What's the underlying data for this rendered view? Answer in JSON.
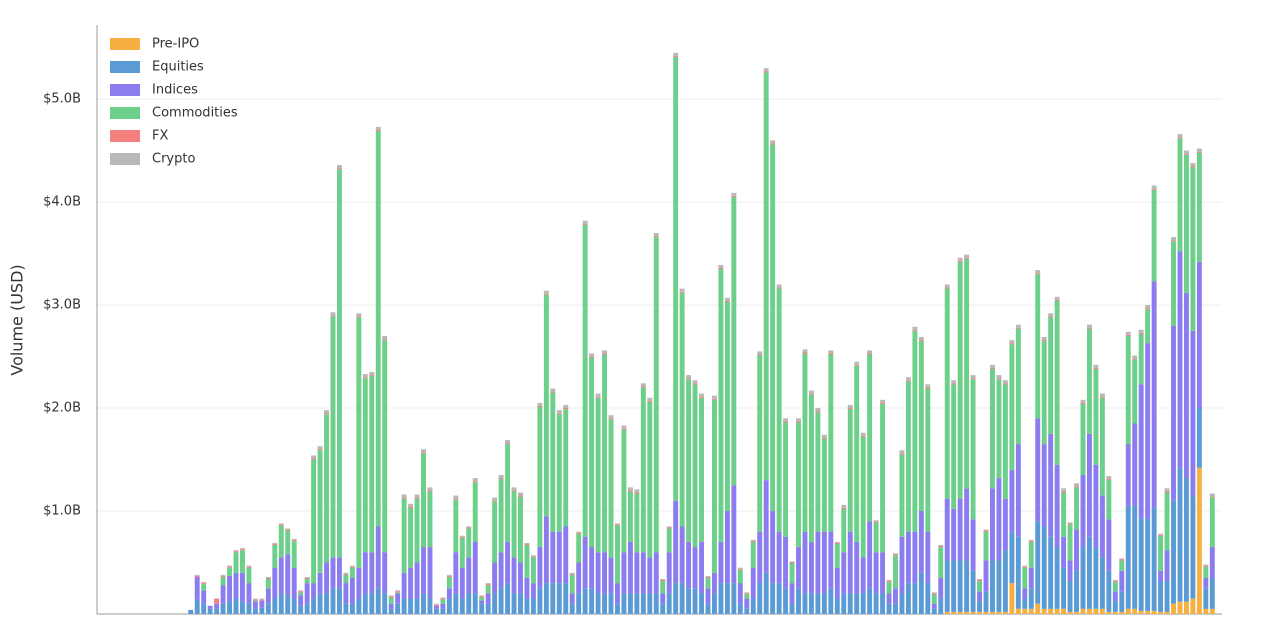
{
  "chart_data": {
    "type": "stacked_bar",
    "y_label": "Volume (USD)",
    "legend": "upper left",
    "grid": true,
    "ylim": [
      0,
      5.72
    ],
    "yticks": [
      {
        "value": 1,
        "label": "$1.0B"
      },
      {
        "value": 2,
        "label": "$2.0B"
      },
      {
        "value": 3,
        "label": "$3.0B"
      },
      {
        "value": 4,
        "label": "$4.0B"
      },
      {
        "value": 5,
        "label": "$5.0B"
      }
    ],
    "categories": [
      null,
      null,
      null,
      null,
      null,
      null,
      null,
      null,
      null,
      null,
      null,
      null,
      null,
      null,
      null,
      null,
      null,
      null,
      null,
      null,
      null,
      null,
      null,
      null,
      null,
      null,
      null,
      null,
      null,
      null,
      null,
      null,
      null,
      null,
      null,
      null,
      null,
      null,
      null,
      null,
      null,
      null,
      null,
      null,
      null,
      null,
      null,
      null,
      null,
      null,
      null,
      null,
      null,
      null,
      null,
      null,
      null,
      null,
      null,
      null,
      null,
      null,
      null,
      null,
      null,
      null,
      null,
      null,
      null,
      null,
      null,
      null,
      null,
      null,
      null,
      null,
      null,
      null,
      null,
      null,
      null,
      null,
      null,
      null,
      null,
      null,
      null,
      null,
      null,
      null,
      null,
      null,
      null,
      null,
      null,
      null,
      null,
      null,
      null,
      null,
      null,
      null,
      null,
      null,
      null,
      null,
      null,
      null,
      null,
      null,
      null,
      null,
      null,
      null,
      null,
      null,
      null,
      null,
      null,
      null,
      null,
      null,
      null,
      null,
      null,
      null,
      null,
      null,
      null,
      null,
      null,
      null,
      null,
      null,
      null,
      null,
      null,
      null,
      null,
      null,
      null,
      null,
      null,
      null,
      null,
      null,
      null,
      null,
      null,
      null,
      null,
      null,
      null,
      null,
      null,
      null,
      null,
      null,
      null,
      null,
      null,
      null,
      null,
      null,
      null,
      null,
      null,
      null,
      null,
      null,
      null,
      null,
      null,
      null
    ],
    "series": [
      {
        "name": "Pre-IPO",
        "color": "#f5b041",
        "values": [
          0,
          0,
          0,
          0,
          0,
          0,
          0,
          0,
          0,
          0,
          0,
          0,
          0,
          0,
          0,
          0,
          0,
          0,
          0,
          0,
          0,
          0,
          0,
          0,
          0,
          0,
          0,
          0,
          0,
          0,
          0,
          0,
          0,
          0,
          0,
          0,
          0,
          0,
          0,
          0,
          0,
          0,
          0,
          0,
          0,
          0,
          0,
          0,
          0,
          0,
          0,
          0,
          0,
          0,
          0,
          0,
          0,
          0,
          0,
          0,
          0,
          0,
          0,
          0,
          0,
          0,
          0,
          0,
          0,
          0,
          0,
          0,
          0,
          0,
          0,
          0,
          0,
          0,
          0,
          0,
          0,
          0,
          0,
          0,
          0,
          0,
          0,
          0,
          0,
          0,
          0,
          0,
          0,
          0,
          0,
          0,
          0,
          0,
          0,
          0,
          0,
          0,
          0,
          0,
          0,
          0,
          0,
          0,
          0,
          0,
          0,
          0,
          0,
          0,
          0,
          0,
          0,
          0,
          0,
          0,
          0,
          0,
          0,
          0,
          0,
          0,
          0,
          0,
          0,
          0,
          0,
          0.02,
          0.02,
          0.02,
          0.02,
          0.02,
          0.02,
          0.02,
          0.02,
          0.02,
          0.02,
          0.3,
          0.05,
          0.05,
          0.05,
          0.1,
          0.05,
          0.05,
          0.05,
          0.05,
          0.02,
          0.02,
          0.05,
          0.05,
          0.05,
          0.05,
          0.02,
          0.02,
          0.02,
          0.05,
          0.05,
          0.03,
          0.03,
          0.03,
          0.02,
          0.02,
          0.1,
          0.12,
          0.12,
          0.15,
          1.42,
          0.05,
          0.05,
          0
        ]
      },
      {
        "name": "Equities",
        "color": "#5b9bd5",
        "values": [
          0,
          0,
          0,
          0,
          0,
          0,
          0,
          0,
          0,
          0,
          0,
          0,
          0,
          0,
          0.04,
          0.14,
          0.1,
          0.05,
          0.05,
          0.1,
          0.12,
          0.15,
          0.12,
          0.1,
          0.05,
          0.06,
          0.1,
          0.15,
          0.2,
          0.18,
          0.15,
          0.08,
          0.1,
          0.15,
          0.2,
          0.2,
          0.25,
          0.25,
          0.1,
          0.1,
          0.15,
          0.2,
          0.2,
          0.25,
          0.2,
          0.05,
          0.1,
          0.15,
          0.15,
          0.15,
          0.2,
          0.15,
          0.05,
          0.05,
          0.15,
          0.2,
          0.15,
          0.2,
          0.2,
          0.1,
          0.1,
          0.2,
          0.25,
          0.3,
          0.2,
          0.2,
          0.15,
          0.15,
          0.25,
          0.3,
          0.3,
          0.3,
          0.3,
          0.1,
          0.2,
          0.25,
          0.25,
          0.2,
          0.2,
          0.2,
          0.1,
          0.2,
          0.2,
          0.2,
          0.2,
          0.2,
          0.2,
          0.1,
          0.2,
          0.3,
          0.3,
          0.25,
          0.25,
          0.2,
          0.1,
          0.2,
          0.3,
          0.3,
          0.3,
          0.1,
          0.05,
          0.15,
          0.3,
          0.4,
          0.3,
          0.3,
          0.25,
          0.1,
          0.25,
          0.2,
          0.2,
          0.2,
          0.2,
          0.25,
          0.15,
          0.2,
          0.2,
          0.2,
          0.2,
          0.25,
          0.2,
          0.2,
          0.1,
          0.1,
          0.2,
          0.3,
          0.3,
          0.4,
          0.3,
          0.05,
          0.15,
          0.5,
          0.5,
          0.5,
          0.5,
          0.4,
          0.1,
          0.2,
          0.5,
          0.5,
          0.6,
          0.5,
          0.7,
          0.1,
          0.2,
          0.8,
          0.8,
          0.7,
          0.6,
          0.4,
          0.3,
          0.4,
          0.6,
          0.7,
          0.6,
          0.5,
          0.4,
          0.1,
          0.2,
          1.0,
          1.0,
          0.9,
          0.9,
          1.0,
          0.3,
          0.3,
          1.0,
          1.3,
          1.2,
          1.0,
          0.58,
          0.2,
          0.3,
          0
        ]
      },
      {
        "name": "Indices",
        "color": "#8b7cf0",
        "values": [
          0,
          0,
          0,
          0,
          0,
          0,
          0,
          0,
          0,
          0,
          0,
          0,
          0,
          0,
          0,
          0.22,
          0.13,
          0.03,
          0.05,
          0.18,
          0.25,
          0.25,
          0.28,
          0.2,
          0.07,
          0.07,
          0.15,
          0.3,
          0.35,
          0.4,
          0.3,
          0.1,
          0.2,
          0.15,
          0.2,
          0.3,
          0.3,
          0.3,
          0.2,
          0.25,
          0.3,
          0.4,
          0.4,
          0.6,
          0.4,
          0.05,
          0.1,
          0.25,
          0.3,
          0.35,
          0.45,
          0.5,
          0.03,
          0.05,
          0.1,
          0.4,
          0.3,
          0.35,
          0.5,
          0.03,
          0.1,
          0.3,
          0.35,
          0.4,
          0.35,
          0.3,
          0.2,
          0.15,
          0.4,
          0.65,
          0.5,
          0.5,
          0.55,
          0.1,
          0.3,
          0.5,
          0.4,
          0.4,
          0.4,
          0.35,
          0.2,
          0.4,
          0.5,
          0.4,
          0.4,
          0.35,
          0.4,
          0.1,
          0.4,
          0.8,
          0.55,
          0.45,
          0.4,
          0.5,
          0.15,
          0.2,
          0.4,
          0.7,
          0.95,
          0.2,
          0.1,
          0.3,
          0.5,
          0.9,
          0.7,
          0.5,
          0.5,
          0.2,
          0.4,
          0.6,
          0.5,
          0.6,
          0.6,
          0.55,
          0.3,
          0.4,
          0.6,
          0.5,
          0.35,
          0.65,
          0.4,
          0.4,
          0.1,
          0.15,
          0.55,
          0.5,
          0.5,
          0.6,
          0.5,
          0.05,
          0.2,
          0.6,
          0.5,
          0.6,
          0.7,
          0.5,
          0.1,
          0.3,
          0.7,
          0.8,
          0.5,
          0.6,
          0.9,
          0.1,
          0.2,
          1.0,
          0.8,
          1.0,
          0.8,
          0.3,
          0.2,
          0.4,
          0.7,
          1.0,
          0.8,
          0.6,
          0.5,
          0.1,
          0.2,
          0.6,
          0.8,
          1.3,
          1.7,
          2.2,
          0.1,
          0.3,
          1.7,
          2.1,
          1.8,
          1.6,
          1.42,
          0.1,
          0.3,
          0
        ]
      },
      {
        "name": "Commodities",
        "color": "#6ccf8a",
        "values": [
          0,
          0,
          0,
          0,
          0,
          0,
          0,
          0,
          0,
          0,
          0,
          0,
          0,
          0,
          0,
          0,
          0.06,
          0,
          0,
          0.08,
          0.08,
          0.2,
          0.22,
          0.15,
          0.01,
          0,
          0.09,
          0.22,
          0.31,
          0.23,
          0.26,
          0.03,
          0.04,
          1.2,
          1.19,
          1.44,
          2.34,
          3.77,
          0.08,
          0.1,
          2.43,
          1.69,
          1.71,
          3.84,
          2.06,
          0.06,
          0.01,
          0.72,
          0.58,
          0.62,
          0.91,
          0.54,
          0,
          0.04,
          0.11,
          0.51,
          0.29,
          0.28,
          0.58,
          0.03,
          0.08,
          0.59,
          0.71,
          0.95,
          0.64,
          0.64,
          0.32,
          0.25,
          1.36,
          2.15,
          1.35,
          1.14,
          1.14,
          0.18,
          0.28,
          3.03,
          1.84,
          1.5,
          1.92,
          1.34,
          0.56,
          1.19,
          0.49,
          0.57,
          1.6,
          1.51,
          3.06,
          0.12,
          0.23,
          4.31,
          2.27,
          1.58,
          1.58,
          1.4,
          0.1,
          1.68,
          2.65,
          2.03,
          2.8,
          0.13,
          0.04,
          0.25,
          1.71,
          3.96,
          3.56,
          2.36,
          1.11,
          0.19,
          1.21,
          1.73,
          1.43,
          1.16,
          0.9,
          1.72,
          0.23,
          0.42,
          1.19,
          1.71,
          1.17,
          1.62,
          0.29,
          1.44,
          0.11,
          0.32,
          0.8,
          1.46,
          1.95,
          1.65,
          1.39,
          0.09,
          0.3,
          2.04,
          1.21,
          2.3,
          2.23,
          1.36,
          0.1,
          0.28,
          1.16,
          0.96,
          1.11,
          1.22,
          1.12,
          0.2,
          0.25,
          1.4,
          1.0,
          1.13,
          1.59,
          0.43,
          0.35,
          0.41,
          0.69,
          1.02,
          0.93,
          0.95,
          0.38,
          0.09,
          0.1,
          1.05,
          0.62,
          0.49,
          0.33,
          0.89,
          0.34,
          0.56,
          0.82,
          1.1,
          1.34,
          1.59,
          1.06,
          0.11,
          0.48,
          0
        ]
      },
      {
        "name": "FX",
        "color": "#f47f7f",
        "values": [
          0,
          0,
          0,
          0,
          0,
          0,
          0,
          0,
          0,
          0,
          0,
          0,
          0,
          0,
          0,
          0.01,
          0.01,
          0,
          0.05,
          0.01,
          0.01,
          0.01,
          0.01,
          0.01,
          0.01,
          0.01,
          0.01,
          0.01,
          0.01,
          0.01,
          0.01,
          0.01,
          0.01,
          0.01,
          0.01,
          0.01,
          0.01,
          0.01,
          0.01,
          0.01,
          0.01,
          0.01,
          0.01,
          0.01,
          0.01,
          0.01,
          0.01,
          0.01,
          0.01,
          0.01,
          0.01,
          0.01,
          0.01,
          0.01,
          0.01,
          0.01,
          0.01,
          0.01,
          0.01,
          0.01,
          0.01,
          0.01,
          0.01,
          0.01,
          0.01,
          0.01,
          0.01,
          0.01,
          0.01,
          0.01,
          0.01,
          0.01,
          0.01,
          0.01,
          0.01,
          0.01,
          0.01,
          0.01,
          0.01,
          0.01,
          0.01,
          0.01,
          0.01,
          0.01,
          0.01,
          0.01,
          0.01,
          0.01,
          0.01,
          0.01,
          0.01,
          0.01,
          0.01,
          0.01,
          0.01,
          0.01,
          0.01,
          0.01,
          0.01,
          0.01,
          0.01,
          0.01,
          0.01,
          0.01,
          0.01,
          0.01,
          0.01,
          0.01,
          0.01,
          0.01,
          0.01,
          0.01,
          0.01,
          0.01,
          0.01,
          0.01,
          0.01,
          0.01,
          0.01,
          0.01,
          0.01,
          0.01,
          0.01,
          0.01,
          0.01,
          0.01,
          0.01,
          0.01,
          0.01,
          0.01,
          0.01,
          0.01,
          0.01,
          0.01,
          0.01,
          0.01,
          0.01,
          0.01,
          0.01,
          0.01,
          0.01,
          0.01,
          0.01,
          0.01,
          0.01,
          0.01,
          0.01,
          0.01,
          0.01,
          0.01,
          0.01,
          0.01,
          0.01,
          0.01,
          0.01,
          0.01,
          0.01,
          0.01,
          0.01,
          0.01,
          0.01,
          0.01,
          0.01,
          0.01,
          0.01,
          0.01,
          0.01,
          0.01,
          0.01,
          0.01,
          0.01,
          0.01,
          0.01,
          0
        ]
      },
      {
        "name": "Crypto",
        "color": "#b8b8b8",
        "values": [
          0,
          0,
          0,
          0,
          0,
          0,
          0,
          0,
          0,
          0,
          0,
          0,
          0,
          0,
          0,
          0.01,
          0.01,
          0,
          0,
          0.01,
          0.01,
          0.01,
          0.01,
          0.01,
          0.01,
          0.01,
          0.01,
          0.01,
          0.01,
          0.01,
          0.01,
          0.01,
          0.01,
          0.03,
          0.03,
          0.03,
          0.03,
          0.03,
          0.01,
          0.01,
          0.03,
          0.03,
          0.03,
          0.03,
          0.03,
          0.01,
          0.01,
          0.03,
          0.03,
          0.03,
          0.03,
          0.03,
          0.01,
          0.01,
          0.01,
          0.03,
          0.01,
          0.01,
          0.03,
          0.01,
          0.01,
          0.03,
          0.03,
          0.03,
          0.03,
          0.03,
          0.01,
          0.01,
          0.03,
          0.03,
          0.03,
          0.03,
          0.03,
          0.01,
          0.01,
          0.03,
          0.03,
          0.03,
          0.03,
          0.03,
          0.01,
          0.03,
          0.03,
          0.03,
          0.03,
          0.03,
          0.03,
          0.01,
          0.01,
          0.03,
          0.03,
          0.03,
          0.03,
          0.03,
          0.01,
          0.03,
          0.03,
          0.03,
          0.03,
          0.01,
          0.01,
          0.01,
          0.03,
          0.03,
          0.03,
          0.03,
          0.03,
          0.01,
          0.03,
          0.03,
          0.03,
          0.03,
          0.03,
          0.03,
          0.01,
          0.03,
          0.03,
          0.03,
          0.03,
          0.03,
          0.01,
          0.03,
          0.01,
          0.01,
          0.03,
          0.03,
          0.03,
          0.03,
          0.03,
          0.01,
          0.01,
          0.03,
          0.03,
          0.03,
          0.03,
          0.03,
          0.01,
          0.01,
          0.03,
          0.03,
          0.03,
          0.03,
          0.03,
          0.01,
          0.01,
          0.03,
          0.03,
          0.03,
          0.03,
          0.03,
          0.01,
          0.03,
          0.03,
          0.03,
          0.03,
          0.03,
          0.03,
          0.01,
          0.01,
          0.03,
          0.03,
          0.03,
          0.03,
          0.03,
          0.01,
          0.03,
          0.03,
          0.03,
          0.03,
          0.03,
          0.03,
          0.01,
          0.03,
          0
        ]
      }
    ]
  }
}
